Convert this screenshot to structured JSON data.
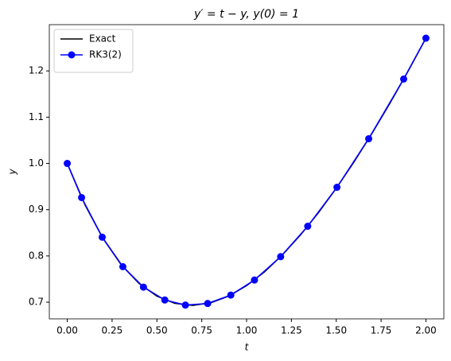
{
  "chart_data": {
    "type": "line",
    "title": "y′ = t − y, y(0) = 1",
    "x_label": "t",
    "y_label": "y",
    "series": [
      {
        "name": "Exact",
        "color": "#000000",
        "marker": false,
        "x": [
          0,
          0.1,
          0.2,
          0.3,
          0.4,
          0.5,
          0.6,
          0.7,
          0.8,
          0.9,
          1.0,
          1.1,
          1.2,
          1.3,
          1.4,
          1.5,
          1.6,
          1.7,
          1.8,
          1.9,
          2.0
        ],
        "values": [
          1.0,
          0.9097,
          0.8375,
          0.7816,
          0.7406,
          0.7131,
          0.6976,
          0.6932,
          0.6987,
          0.7131,
          0.7358,
          0.7657,
          0.8024,
          0.8451,
          0.8932,
          0.9463,
          1.0038,
          1.0654,
          1.1306,
          1.1991,
          1.2707
        ]
      },
      {
        "name": "RK3(2)",
        "color": "#0000ff",
        "marker": true,
        "x": [
          0,
          0.08,
          0.195,
          0.31,
          0.425,
          0.544,
          0.659,
          0.783,
          0.912,
          1.044,
          1.19,
          1.341,
          1.504,
          1.681,
          1.876,
          2.0
        ],
        "values": [
          1.0,
          0.9262,
          0.8406,
          0.7768,
          0.7326,
          0.7048,
          0.6938,
          0.6972,
          0.7154,
          0.748,
          0.7984,
          0.8642,
          0.9484,
          1.0534,
          1.1824,
          1.2707
        ]
      }
    ],
    "xlim": [
      -0.1,
      2.1
    ],
    "ylim": [
      0.664,
      1.3
    ],
    "xticks": [
      {
        "value": 0,
        "label": "0.00"
      },
      0.25,
      {
        "value": 0.5,
        "label": "0.50"
      },
      0.75,
      {
        "value": 1,
        "label": "1.00"
      },
      1.25,
      {
        "value": 1.5,
        "label": "1.50"
      },
      1.75,
      {
        "value": 2,
        "label": "2.00"
      }
    ],
    "yticks": [
      0.7,
      0.8,
      0.9,
      {
        "value": 1,
        "label": "1.0"
      },
      1.1,
      1.2
    ],
    "grid": false,
    "legend": "upper left"
  }
}
